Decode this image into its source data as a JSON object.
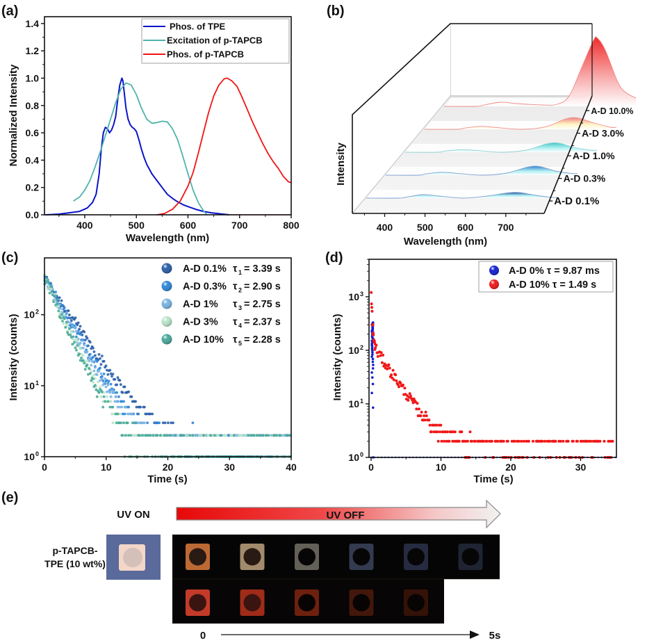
{
  "figure": {
    "panels": [
      "(a)",
      "(b)",
      "(c)",
      "(d)",
      "(e)"
    ]
  },
  "chart_data": [
    {
      "id": "a",
      "type": "line",
      "panel_label": "(a)",
      "title": "",
      "xlabel": "Wavelength (nm)",
      "ylabel": "Normalized Intensity",
      "xlim": [
        322,
        800
      ],
      "ylim": [
        0,
        1.45
      ],
      "xticks": [
        400,
        500,
        600,
        700,
        800
      ],
      "yticks": [
        "0.0",
        "0.2",
        "0.4",
        "0.6",
        "0.8",
        "1.0",
        "1.2",
        "1.4"
      ],
      "yticks_values": [
        0,
        0.2,
        0.4,
        0.6,
        0.8,
        1.0,
        1.2,
        1.4
      ],
      "grid": false,
      "legend_position": "top-right",
      "series": [
        {
          "name": "Phos. of TPE",
          "color": "#0a14c8",
          "x": [
            325,
            350,
            370,
            390,
            405,
            415,
            422,
            428,
            432,
            436,
            440,
            444,
            448,
            452,
            456,
            460,
            464,
            468,
            472,
            474,
            477,
            480,
            484,
            488,
            492,
            496,
            500,
            505,
            510,
            515,
            520,
            530,
            540,
            550,
            560,
            570,
            580,
            590,
            600,
            615,
            630,
            645,
            660,
            680
          ],
          "y": [
            0.0,
            0.005,
            0.015,
            0.025,
            0.05,
            0.09,
            0.15,
            0.3,
            0.48,
            0.6,
            0.64,
            0.63,
            0.6,
            0.62,
            0.66,
            0.72,
            0.85,
            0.95,
            1.0,
            0.98,
            0.88,
            0.78,
            0.7,
            0.66,
            0.64,
            0.63,
            0.61,
            0.55,
            0.48,
            0.42,
            0.37,
            0.3,
            0.25,
            0.2,
            0.15,
            0.12,
            0.095,
            0.075,
            0.06,
            0.04,
            0.025,
            0.015,
            0.008,
            0.0
          ]
        },
        {
          "name": "Excitation of p-TAPCB",
          "color": "#4fb3ab",
          "x": [
            378,
            390,
            400,
            410,
            420,
            430,
            440,
            450,
            460,
            470,
            480,
            490,
            500,
            510,
            520,
            530,
            540,
            550,
            560,
            570,
            580,
            590,
            600,
            610,
            620,
            630,
            637
          ],
          "y": [
            0.1,
            0.13,
            0.18,
            0.25,
            0.35,
            0.46,
            0.58,
            0.7,
            0.82,
            0.92,
            0.965,
            0.95,
            0.88,
            0.78,
            0.7,
            0.67,
            0.675,
            0.685,
            0.68,
            0.63,
            0.55,
            0.43,
            0.3,
            0.18,
            0.09,
            0.03,
            0.0
          ]
        },
        {
          "name": "Phos. of p-TAPCB",
          "color": "#f01414",
          "x": [
            540,
            555,
            570,
            585,
            600,
            610,
            620,
            630,
            640,
            650,
            660,
            670,
            676,
            685,
            695,
            705,
            715,
            725,
            735,
            745,
            755,
            765,
            775,
            785,
            795,
            800
          ],
          "y": [
            0.0,
            0.01,
            0.04,
            0.1,
            0.21,
            0.31,
            0.45,
            0.6,
            0.75,
            0.87,
            0.95,
            0.995,
            1.0,
            0.98,
            0.94,
            0.86,
            0.77,
            0.68,
            0.6,
            0.52,
            0.45,
            0.39,
            0.34,
            0.28,
            0.24,
            0.235
          ]
        }
      ]
    },
    {
      "id": "b",
      "type": "area",
      "subtype": "3d-waterfall",
      "panel_label": "(b)",
      "xlabel": "Wavelength (nm)",
      "ylabel": "Intensity",
      "xlim": [
        320,
        795
      ],
      "xticks": [
        400,
        500,
        600,
        700
      ],
      "grid": false,
      "series": [
        {
          "name": "A-D 0.1%",
          "color": "#1f4e9a",
          "x": [
            320,
            400,
            420,
            460,
            500,
            560,
            620,
            670,
            700,
            740,
            780,
            795
          ],
          "y": [
            0,
            0,
            0.03,
            0.1,
            0.06,
            0.0,
            0.06,
            0.15,
            0.16,
            0.08,
            0.02,
            0.02
          ]
        },
        {
          "name": "A-D 0.3%",
          "color": "#2e7fd0",
          "x": [
            320,
            400,
            420,
            460,
            500,
            560,
            620,
            670,
            700,
            740,
            780,
            795
          ],
          "y": [
            0,
            0,
            0.03,
            0.07,
            0.04,
            0.0,
            0.05,
            0.19,
            0.21,
            0.1,
            0.04,
            0.04
          ]
        },
        {
          "name": "A-D 1.0%",
          "color": "#3fc3c8",
          "x": [
            320,
            400,
            420,
            460,
            500,
            560,
            620,
            670,
            700,
            740,
            780,
            795
          ],
          "y": [
            0,
            0,
            0.03,
            0.06,
            0.04,
            0.0,
            0.05,
            0.2,
            0.22,
            0.11,
            0.05,
            0.05
          ]
        },
        {
          "name": "A-D 3.0%",
          "color": "#f08080",
          "x": [
            320,
            400,
            420,
            460,
            500,
            560,
            620,
            670,
            700,
            740,
            780,
            795
          ],
          "y": [
            0,
            0,
            0.03,
            0.07,
            0.04,
            0.0,
            0.06,
            0.25,
            0.27,
            0.15,
            0.05,
            0.05
          ]
        },
        {
          "name": "A-D 10.0%",
          "color": "#f02020",
          "x": [
            320,
            400,
            420,
            460,
            500,
            560,
            600,
            630,
            660,
            690,
            700,
            720,
            750,
            770,
            795
          ],
          "y": [
            0,
            0,
            0.02,
            0.06,
            0.04,
            0.02,
            0.03,
            0.15,
            0.55,
            0.95,
            0.98,
            0.8,
            0.35,
            0.2,
            0.12
          ]
        }
      ]
    },
    {
      "id": "c",
      "type": "scatter",
      "panel_label": "(c)",
      "xlabel": "Time (s)",
      "ylabel": "Intensity (counts)",
      "xlim": [
        0,
        40
      ],
      "ylim_log10": [
        0,
        2.8
      ],
      "yscale": "log",
      "xticks": [
        0,
        10,
        20,
        30,
        40
      ],
      "yticks": [
        "10",
        "10",
        "10"
      ],
      "yticks_exp": [
        "0",
        "1",
        "2"
      ],
      "grid": false,
      "legend_position": "top-right",
      "series": [
        {
          "name": "A-D 0.1%",
          "tau_symbol": "τ",
          "tau_sub": "1",
          "tau_value": "= 3.39 s",
          "tau_s": 3.39,
          "I0": 330,
          "color": "#2a5fa8"
        },
        {
          "name": "A-D 0.3%",
          "tau_symbol": "τ",
          "tau_sub": "2",
          "tau_value": "= 2.90 s",
          "tau_s": 2.9,
          "I0": 330,
          "color": "#2e86d8"
        },
        {
          "name": "A-D 1%",
          "tau_symbol": "τ",
          "tau_sub": "3",
          "tau_value": "= 2.75 s",
          "tau_s": 2.75,
          "I0": 330,
          "color": "#7ab4e2"
        },
        {
          "name": "A-D 3%",
          "tau_symbol": "τ",
          "tau_sub": "4",
          "tau_value": "= 2.37 s",
          "tau_s": 2.37,
          "I0": 330,
          "color": "#b9e4c9"
        },
        {
          "name": "A-D 10%",
          "tau_symbol": "τ",
          "tau_sub": "5",
          "tau_value": "= 2.28 s",
          "tau_s": 2.28,
          "I0": 330,
          "color": "#4aa89a"
        }
      ]
    },
    {
      "id": "d",
      "type": "scatter",
      "panel_label": "(d)",
      "xlabel": "Time (s)",
      "ylabel": "Intensity (counts)",
      "xlim": [
        0,
        35
      ],
      "ylim_log10": [
        0,
        3.7
      ],
      "yscale": "log",
      "xticks": [
        0,
        10,
        20,
        30
      ],
      "yticks": [
        "10",
        "10",
        "10",
        "10"
      ],
      "yticks_exp": [
        "0",
        "1",
        "2",
        "3"
      ],
      "grid": false,
      "legend_position": "top-right",
      "series": [
        {
          "name": "A-D 0% τ = 9.87 ms",
          "tau_s": 0.00987,
          "I0": 320,
          "color": "#1420d0"
        },
        {
          "name": "A-D 10% τ = 1.49 s",
          "tau_s": 1.49,
          "I0": 1500,
          "color": "#f01818"
        }
      ]
    }
  ],
  "panel_e": {
    "panel_label": "(e)",
    "uv_on_label": "UV ON",
    "uv_off_label": "UV OFF",
    "sample_label_line1": "p-TAPCB-",
    "sample_label_line2": "TPE (10 wt%)",
    "timeline_start": "0",
    "timeline_end": "5s",
    "uv_on_color": "#f3d6c8",
    "top_row_colors": [
      "#d0743a",
      "#b29a78",
      "#6e6a62",
      "#3a4058",
      "#2a3048",
      "#222838"
    ],
    "bottom_row_colors": [
      "#d8402e",
      "#b0301c",
      "#7a2410",
      "#4a1a0c",
      "#3a1408"
    ]
  }
}
